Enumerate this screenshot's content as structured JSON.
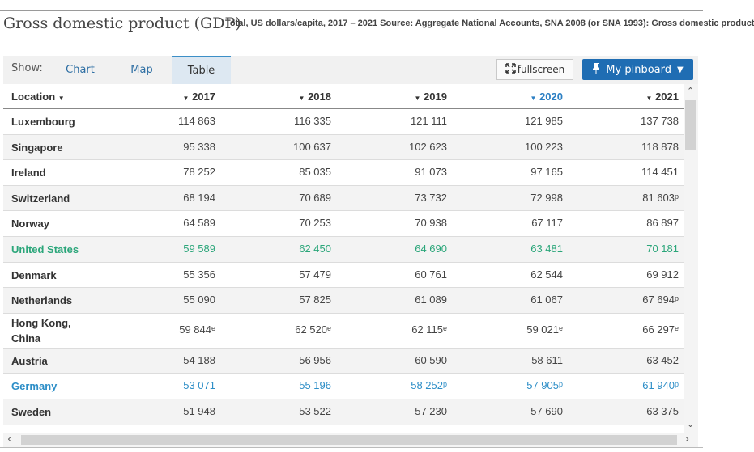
{
  "header": {
    "title": "Gross domestic product (GDP)",
    "subtitle": "Total, US dollars/capita, 2017 – 2021 Source: Aggregate National Accounts, SNA 2008 (or SNA 1993): Gross domestic product"
  },
  "toolbar": {
    "show_label": "Show:",
    "tabs": [
      "Chart",
      "Map",
      "Table"
    ],
    "active_tab": "Table",
    "fullscreen_label": "fullscreen",
    "pinboard_label": "My pinboard"
  },
  "table": {
    "location_header": "Location",
    "years": [
      "2017",
      "2018",
      "2019",
      "2020",
      "2021"
    ],
    "active_year": "2020",
    "rows": [
      {
        "name": "Luxembourg",
        "values": [
          "114 863",
          "116 335",
          "121 111",
          "121 985",
          "137 738"
        ],
        "flags": [
          "",
          "",
          "",
          "",
          ""
        ]
      },
      {
        "name": "Singapore",
        "values": [
          "95 338",
          "100 637",
          "102 623",
          "100 223",
          "118 878"
        ],
        "flags": [
          "",
          "",
          "",
          "",
          ""
        ]
      },
      {
        "name": "Ireland",
        "values": [
          "78 252",
          "85 035",
          "91 073",
          "97 165",
          "114 451"
        ],
        "flags": [
          "",
          "",
          "",
          "",
          ""
        ]
      },
      {
        "name": "Switzerland",
        "values": [
          "68 194",
          "70 689",
          "73 732",
          "72 998",
          "81 603"
        ],
        "flags": [
          "",
          "",
          "",
          "",
          "p"
        ]
      },
      {
        "name": "Norway",
        "values": [
          "64 589",
          "70 253",
          "70 938",
          "67 117",
          "86 897"
        ],
        "flags": [
          "",
          "",
          "",
          "",
          ""
        ]
      },
      {
        "name": "United States",
        "values": [
          "59 589",
          "62 450",
          "64 690",
          "63 481",
          "70 181"
        ],
        "flags": [
          "",
          "",
          "",
          "",
          ""
        ],
        "highlight": "green"
      },
      {
        "name": "Denmark",
        "values": [
          "55 356",
          "57 479",
          "60 761",
          "62 544",
          "69 912"
        ],
        "flags": [
          "",
          "",
          "",
          "",
          ""
        ]
      },
      {
        "name": "Netherlands",
        "values": [
          "55 090",
          "57 825",
          "61 089",
          "61 067",
          "67 694"
        ],
        "flags": [
          "",
          "",
          "",
          "",
          "p"
        ]
      },
      {
        "name": "Hong Kong, China",
        "values": [
          "59 844",
          "62 520",
          "62 115",
          "59 021",
          "66 297"
        ],
        "flags": [
          "e",
          "e",
          "e",
          "e",
          "e"
        ]
      },
      {
        "name": "Austria",
        "values": [
          "54 188",
          "56 956",
          "60 590",
          "58 611",
          "63 452"
        ],
        "flags": [
          "",
          "",
          "",
          "",
          ""
        ]
      },
      {
        "name": "Germany",
        "values": [
          "53 071",
          "55 196",
          "58 252",
          "57 905",
          "61 940"
        ],
        "flags": [
          "",
          "",
          "p",
          "p",
          "p"
        ],
        "highlight": "blue"
      },
      {
        "name": "Sweden",
        "values": [
          "51 948",
          "53 522",
          "57 230",
          "57 690",
          "63 375"
        ],
        "flags": [
          "",
          "",
          "",
          "",
          ""
        ]
      }
    ]
  },
  "icons": {
    "sort": "sort-down-triangle",
    "fullscreen": "expand-arrows-icon",
    "pin": "pushpin-icon",
    "dropdown": "caret-down-icon"
  }
}
